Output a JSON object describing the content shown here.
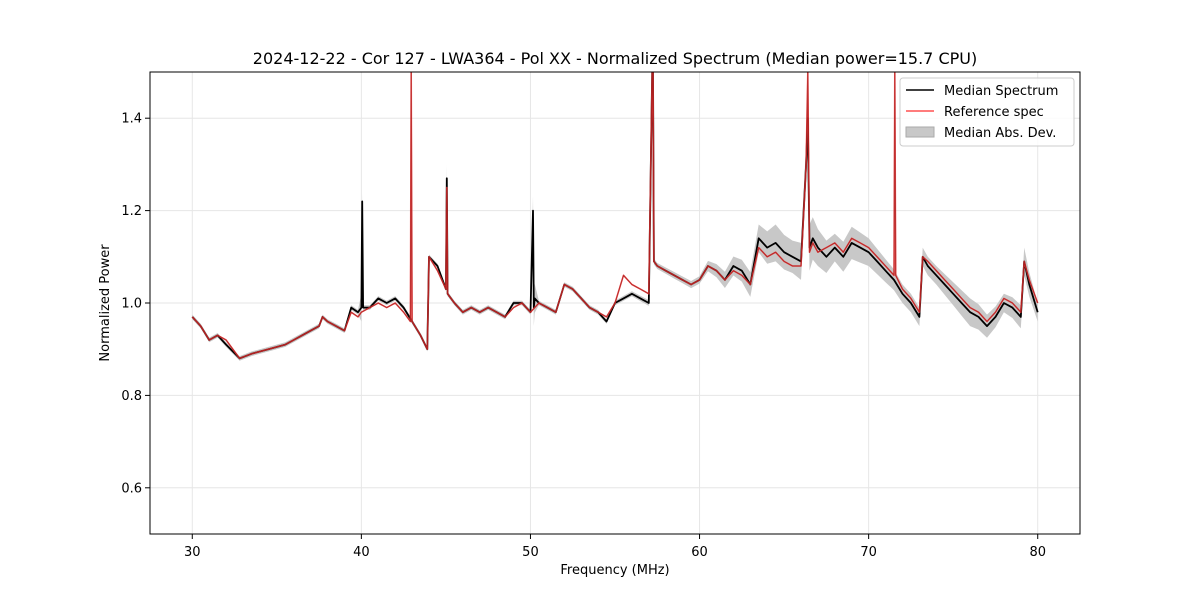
{
  "chart_data": {
    "type": "line",
    "title": "2024-12-22 - Cor 127 - LWA364 - Pol XX - Normalized Spectrum (Median power=15.7 CPU)",
    "xlabel": "Frequency (MHz)",
    "ylabel": "Normalized Power",
    "xlim": [
      27.5,
      82.5
    ],
    "ylim": [
      0.5,
      1.5
    ],
    "xticks": [
      30,
      40,
      50,
      60,
      70,
      80
    ],
    "yticks": [
      0.6,
      0.8,
      1.0,
      1.2,
      1.4
    ],
    "xtick_labels": [
      "30",
      "40",
      "50",
      "60",
      "70",
      "80"
    ],
    "ytick_labels": [
      "0.6",
      "0.8",
      "1.0",
      "1.2",
      "1.4"
    ],
    "grid": true,
    "legend_position": "top-right",
    "series": [
      {
        "name": "Median Spectrum",
        "color": "#000000",
        "x": [
          30.0,
          30.5,
          31.0,
          31.5,
          32.0,
          32.8,
          33.5,
          34.5,
          35.5,
          36.0,
          36.5,
          37.0,
          37.5,
          37.7,
          38.0,
          38.5,
          39.0,
          39.4,
          39.8,
          40.0,
          40.05,
          40.1,
          40.5,
          41.0,
          41.5,
          42.0,
          42.5,
          43.0,
          43.5,
          43.9,
          44.0,
          44.5,
          45.0,
          45.05,
          45.1,
          45.5,
          46.0,
          46.5,
          47.0,
          47.5,
          48.0,
          48.5,
          49.0,
          49.5,
          50.0,
          50.15,
          50.2,
          50.25,
          50.5,
          51.0,
          51.5,
          52.0,
          52.5,
          53.0,
          53.5,
          54.0,
          54.5,
          55.0,
          55.5,
          56.0,
          56.5,
          57.0,
          57.2,
          57.25,
          57.3,
          57.5,
          58.0,
          58.5,
          59.0,
          59.5,
          60.0,
          60.5,
          61.0,
          61.5,
          62.0,
          62.5,
          63.0,
          63.5,
          64.0,
          64.5,
          65.0,
          65.5,
          66.0,
          66.3,
          66.4,
          66.5,
          66.7,
          67.0,
          67.5,
          68.0,
          68.5,
          69.0,
          69.5,
          70.0,
          70.5,
          71.0,
          71.5,
          72.0,
          72.5,
          73.0,
          73.2,
          73.5,
          74.0,
          74.5,
          75.0,
          75.5,
          76.0,
          76.5,
          77.0,
          77.5,
          78.0,
          78.5,
          79.0,
          79.2,
          79.5,
          80.0
        ],
        "values": [
          0.97,
          0.95,
          0.92,
          0.93,
          0.91,
          0.88,
          0.89,
          0.9,
          0.91,
          0.92,
          0.93,
          0.94,
          0.95,
          0.97,
          0.96,
          0.95,
          0.94,
          0.99,
          0.98,
          0.99,
          1.22,
          0.99,
          0.99,
          1.01,
          1.0,
          1.01,
          0.99,
          0.96,
          0.93,
          0.9,
          1.1,
          1.08,
          1.03,
          1.27,
          1.02,
          1.0,
          0.98,
          0.99,
          0.98,
          0.99,
          0.98,
          0.97,
          1.0,
          1.0,
          0.98,
          1.2,
          0.99,
          1.01,
          1.0,
          0.99,
          0.98,
          1.04,
          1.03,
          1.01,
          0.99,
          0.98,
          0.96,
          1.0,
          1.01,
          1.02,
          1.01,
          1.0,
          1.5,
          1.5,
          1.09,
          1.08,
          1.07,
          1.06,
          1.05,
          1.04,
          1.05,
          1.08,
          1.07,
          1.05,
          1.08,
          1.07,
          1.04,
          1.14,
          1.12,
          1.13,
          1.11,
          1.1,
          1.09,
          1.3,
          1.4,
          1.12,
          1.14,
          1.12,
          1.1,
          1.12,
          1.1,
          1.13,
          1.12,
          1.11,
          1.09,
          1.07,
          1.05,
          1.02,
          1.0,
          0.97,
          1.1,
          1.08,
          1.06,
          1.04,
          1.02,
          1.0,
          0.98,
          0.97,
          0.95,
          0.97,
          1.0,
          0.99,
          0.97,
          1.09,
          1.04,
          0.98
        ]
      },
      {
        "name": "Reference spec",
        "color": "#ff5050",
        "x": [
          30.0,
          30.5,
          31.0,
          31.5,
          32.0,
          32.8,
          33.5,
          34.5,
          35.5,
          36.0,
          36.5,
          37.0,
          37.5,
          37.7,
          38.0,
          38.5,
          39.0,
          39.4,
          39.8,
          40.0,
          40.5,
          41.0,
          41.5,
          42.0,
          42.5,
          42.9,
          42.95,
          43.0,
          43.5,
          43.9,
          44.0,
          44.5,
          45.0,
          45.05,
          45.1,
          45.5,
          46.0,
          46.5,
          47.0,
          47.5,
          48.0,
          48.5,
          49.0,
          49.5,
          50.0,
          50.5,
          51.0,
          51.5,
          52.0,
          52.5,
          53.0,
          53.5,
          54.0,
          54.5,
          55.0,
          55.5,
          56.0,
          56.5,
          57.0,
          57.2,
          57.25,
          57.3,
          57.5,
          58.0,
          58.5,
          59.0,
          59.5,
          60.0,
          60.5,
          61.0,
          61.5,
          62.0,
          62.5,
          63.0,
          63.5,
          64.0,
          64.5,
          65.0,
          65.5,
          66.0,
          66.3,
          66.4,
          66.5,
          66.7,
          67.0,
          67.5,
          68.0,
          68.5,
          69.0,
          69.5,
          70.0,
          70.5,
          71.0,
          71.5,
          71.55,
          71.6,
          72.0,
          72.5,
          73.0,
          73.2,
          73.5,
          74.0,
          74.5,
          75.0,
          75.5,
          76.0,
          76.5,
          77.0,
          77.5,
          78.0,
          78.5,
          79.0,
          79.2,
          79.5,
          80.0
        ],
        "values": [
          0.97,
          0.95,
          0.92,
          0.93,
          0.92,
          0.88,
          0.89,
          0.9,
          0.91,
          0.92,
          0.93,
          0.94,
          0.95,
          0.97,
          0.96,
          0.95,
          0.94,
          0.98,
          0.97,
          0.98,
          0.99,
          1.0,
          0.99,
          1.0,
          0.98,
          0.96,
          1.5,
          0.96,
          0.93,
          0.9,
          1.1,
          1.07,
          1.03,
          1.25,
          1.02,
          1.0,
          0.98,
          0.99,
          0.98,
          0.99,
          0.98,
          0.97,
          0.99,
          1.0,
          0.98,
          1.0,
          0.99,
          0.98,
          1.04,
          1.03,
          1.01,
          0.99,
          0.98,
          0.97,
          1.0,
          1.06,
          1.04,
          1.03,
          1.02,
          1.5,
          1.5,
          1.09,
          1.08,
          1.07,
          1.06,
          1.05,
          1.04,
          1.05,
          1.08,
          1.07,
          1.05,
          1.07,
          1.06,
          1.04,
          1.12,
          1.1,
          1.11,
          1.09,
          1.08,
          1.08,
          1.3,
          1.5,
          1.11,
          1.13,
          1.11,
          1.12,
          1.13,
          1.11,
          1.14,
          1.13,
          1.12,
          1.1,
          1.08,
          1.06,
          1.5,
          1.06,
          1.03,
          1.01,
          0.98,
          1.1,
          1.09,
          1.07,
          1.05,
          1.03,
          1.01,
          0.99,
          0.98,
          0.96,
          0.98,
          1.01,
          1.0,
          0.98,
          1.09,
          1.05,
          1.0
        ]
      },
      {
        "name": "Median Abs. Dev.",
        "color": "#c8c8c8",
        "fill": true,
        "x": [
          30.0,
          35.0,
          39.9,
          40.0,
          40.1,
          45.0,
          45.05,
          45.1,
          50.0,
          50.2,
          50.4,
          55.0,
          60.0,
          63.5,
          64.5,
          65.5,
          66.0,
          66.5,
          67.0,
          68.0,
          69.0,
          70.0,
          71.0,
          72.0,
          73.0,
          74.0,
          75.0,
          76.0,
          77.0,
          78.0,
          79.0,
          79.2,
          80.0
        ],
        "values": [
          0.005,
          0.005,
          0.005,
          0.03,
          0.005,
          0.005,
          0.03,
          0.005,
          0.005,
          0.04,
          0.005,
          0.005,
          0.008,
          0.03,
          0.04,
          0.035,
          0.04,
          0.05,
          0.04,
          0.03,
          0.035,
          0.03,
          0.025,
          0.02,
          0.02,
          0.02,
          0.025,
          0.03,
          0.025,
          0.02,
          0.025,
          0.03,
          0.02
        ]
      }
    ]
  }
}
